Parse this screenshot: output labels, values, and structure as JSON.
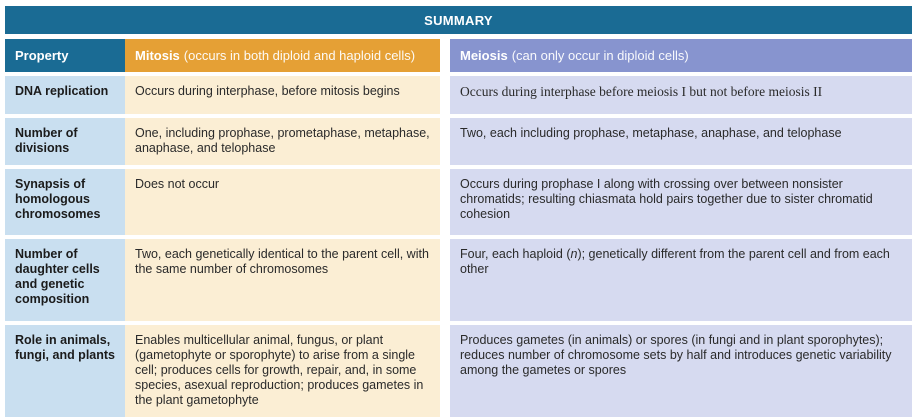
{
  "title": "SUMMARY",
  "header": {
    "property": "Property",
    "mitosis_name": "Mitosis",
    "mitosis_note": "(occurs in both diploid and haploid cells)",
    "meiosis_name": "Meiosis",
    "meiosis_note": "(can only occur in diploid cells)"
  },
  "rows": [
    {
      "property": "DNA replication",
      "mitosis": "Occurs during interphase, before mitosis begins",
      "meiosis": "Occurs during interphase before meiosis I but not before meiosis II"
    },
    {
      "property": "Number of divisions",
      "mitosis": "One, including prophase, prometaphase, metaphase, anaphase, and telophase",
      "meiosis": "Two, each including prophase, metaphase, anaphase, and telophase"
    },
    {
      "property": "Synapsis of homologous chromosomes",
      "mitosis": "Does not occur",
      "meiosis": "Occurs during prophase I along with crossing over between nonsister chromatids; resulting chiasmata hold pairs together due to sister chromatid cohesion"
    },
    {
      "property": "Number of daughter cells and genetic composition",
      "mitosis": "Two, each genetically identical to the parent cell, with the same number of chromosomes",
      "meiosis": "Four, each haploid (n); genetically different from the parent cell and from each other"
    },
    {
      "property": "Role in animals, fungi, and plants",
      "mitosis": "Enables multicellular animal, fungus, or plant (gametophyte or sporophyte) to arise from a single cell; produces cells for growth, repair, and, in some species, asexual reproduction; produces gametes in the plant gametophyte",
      "meiosis": "Produces gametes (in animals) or spores (in fungi and in plant sporophytes); reduces number of chromosome sets by half and introduces genetic variability among the gametes or spores"
    }
  ]
}
